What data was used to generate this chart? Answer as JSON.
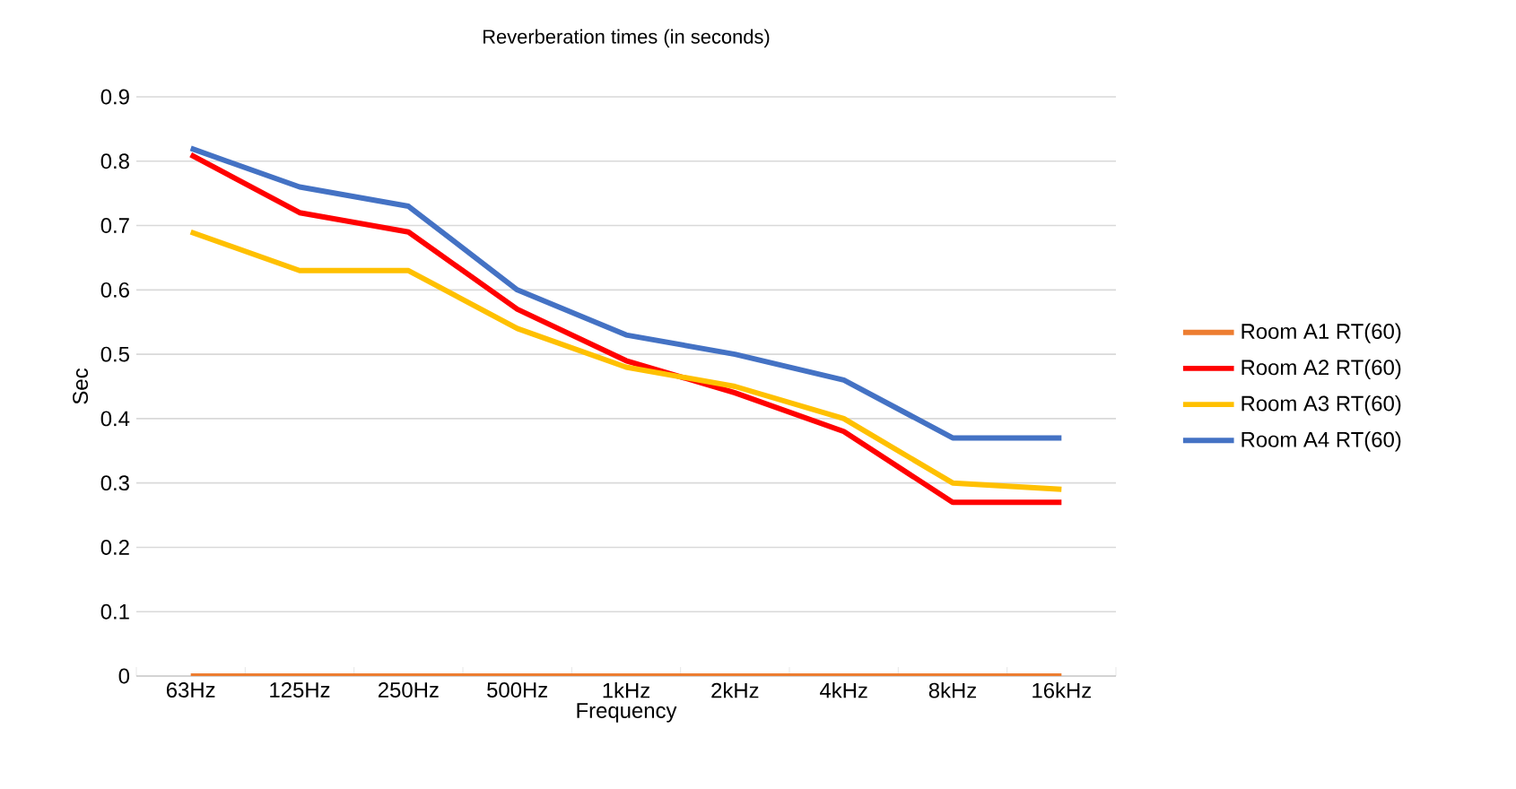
{
  "chart_data": {
    "type": "line",
    "title": "Reverberation times (in seconds)",
    "xlabel": "Frequency",
    "ylabel": "Sec",
    "categories": [
      "63Hz",
      "125Hz",
      "250Hz",
      "500Hz",
      "1kHz",
      "2kHz",
      "4kHz",
      "8kHz",
      "16kHz"
    ],
    "series": [
      {
        "name": "Room A1 RT(60)",
        "color": "#ed7d31",
        "values": [
          0,
          0,
          0,
          0,
          0,
          0,
          0,
          0,
          0
        ]
      },
      {
        "name": "Room A2 RT(60)",
        "color": "#ff0000",
        "values": [
          0.81,
          0.72,
          0.69,
          0.57,
          0.49,
          0.44,
          0.38,
          0.27,
          0.27
        ]
      },
      {
        "name": "Room A3 RT(60)",
        "color": "#ffc000",
        "values": [
          0.69,
          0.63,
          0.63,
          0.54,
          0.48,
          0.45,
          0.4,
          0.3,
          0.29
        ]
      },
      {
        "name": "Room A4 RT(60)",
        "color": "#4472c4",
        "values": [
          0.82,
          0.76,
          0.73,
          0.6,
          0.53,
          0.5,
          0.46,
          0.37,
          0.37
        ]
      }
    ],
    "ylim": [
      0,
      0.9
    ],
    "yticks": [
      0,
      0.1,
      0.2,
      0.3,
      0.4,
      0.5,
      0.6,
      0.7,
      0.8,
      0.9
    ],
    "grid": "y",
    "legend": "right",
    "marker": "none",
    "line_style": "solid"
  }
}
